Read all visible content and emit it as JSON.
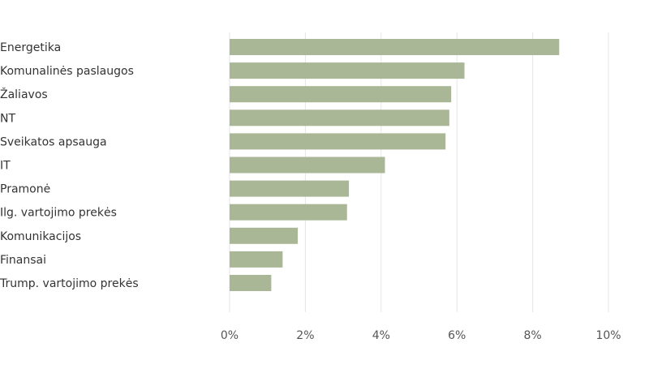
{
  "chart_data": {
    "type": "bar",
    "orientation": "horizontal",
    "categories": [
      "Energetika",
      "Komunalinės paslaugos",
      "Žaliavos",
      "NT",
      "Sveikatos apsauga",
      "IT",
      "Pramonė",
      "Ilg. vartojimo prekės",
      "Komunikacijos",
      "Finansai",
      "Trump. vartojimo prekės"
    ],
    "values": [
      8.7,
      6.2,
      5.85,
      5.8,
      5.7,
      4.1,
      3.15,
      3.1,
      1.8,
      1.4,
      1.1
    ],
    "xlim": [
      0,
      10
    ],
    "xticks": [
      0,
      2,
      4,
      6,
      8,
      10
    ],
    "xtick_labels": [
      "0%",
      "2%",
      "4%",
      "6%",
      "8%",
      "10%"
    ],
    "grid": "vertical",
    "bar_color": "#aab796",
    "title": "",
    "xlabel": "",
    "ylabel": ""
  }
}
